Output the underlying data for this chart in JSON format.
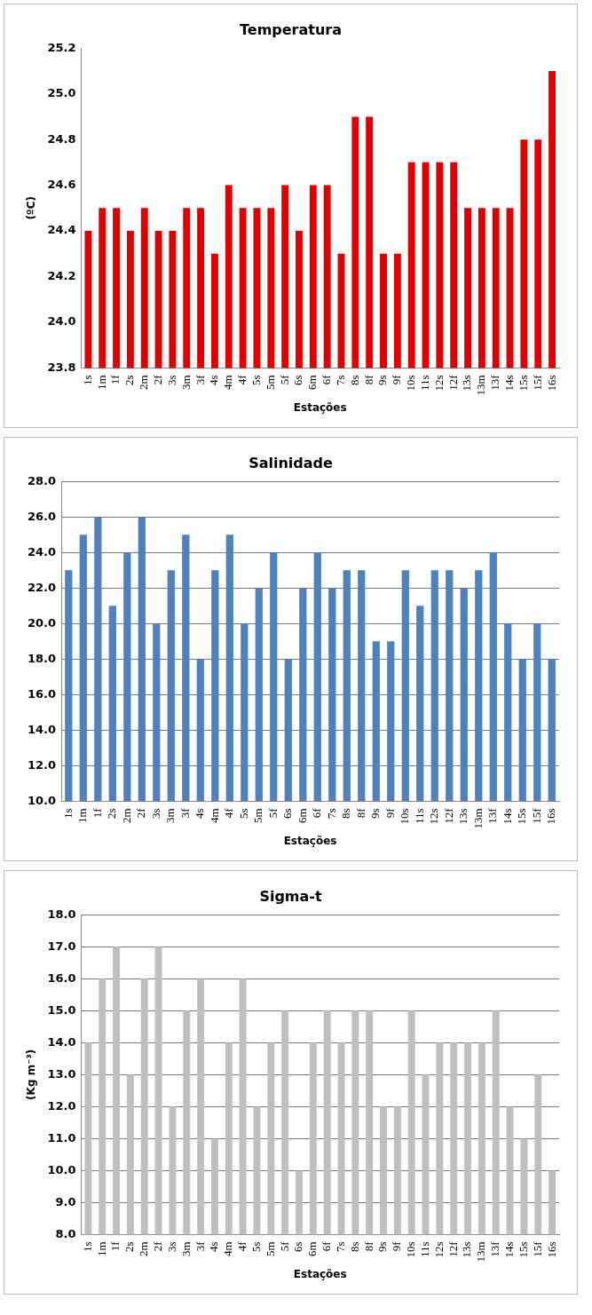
{
  "chart_data": [
    {
      "type": "bar",
      "title": "Temperatura",
      "xlabel": "Estações",
      "ylabel": "(ºC)",
      "categories": [
        "1s",
        "1m",
        "1f",
        "2s",
        "2m",
        "2f",
        "3s",
        "3m",
        "3f",
        "4s",
        "4m",
        "4f",
        "5s",
        "5m",
        "5f",
        "6s",
        "6m",
        "6f",
        "7s",
        "8s",
        "8f",
        "9s",
        "9f",
        "10s",
        "11s",
        "12s",
        "12f",
        "13s",
        "13m",
        "13f",
        "14s",
        "15s",
        "15f",
        "16s"
      ],
      "values": [
        24.4,
        24.5,
        24.5,
        24.4,
        24.5,
        24.4,
        24.4,
        24.5,
        24.5,
        24.3,
        24.6,
        24.5,
        24.5,
        24.5,
        24.6,
        24.4,
        24.6,
        24.6,
        24.3,
        24.9,
        24.9,
        24.3,
        24.3,
        24.7,
        24.7,
        24.7,
        24.7,
        24.5,
        24.5,
        24.5,
        24.5,
        24.8,
        24.8,
        25.1
      ],
      "color": "#e00000",
      "ylim": [
        23.8,
        25.2
      ],
      "yticks": [
        {
          "value": 23.8,
          "label": "23.8"
        },
        {
          "value": 24,
          "label": "24.0"
        },
        {
          "value": 24.2,
          "label": "24.2"
        },
        {
          "value": 24.4,
          "label": "24.4"
        },
        {
          "value": 24.6,
          "label": "24.6"
        },
        {
          "value": 24.8,
          "label": "24.8"
        },
        {
          "value": 25,
          "label": "25.0"
        },
        {
          "value": 25.2,
          "label": "25.2"
        }
      ],
      "grid": false,
      "legend": false
    },
    {
      "type": "bar",
      "title": "Salinidade",
      "xlabel": "Estações",
      "categories": [
        "1s",
        "1m",
        "1f",
        "2s",
        "2m",
        "2f",
        "3s",
        "3m",
        "3f",
        "4s",
        "4m",
        "4f",
        "5s",
        "5m",
        "5f",
        "6s",
        "6m",
        "6f",
        "7s",
        "8s",
        "8f",
        "9s",
        "9f",
        "10s",
        "11s",
        "12s",
        "12f",
        "13s",
        "13m",
        "13f",
        "14s",
        "15s",
        "15f",
        "16s"
      ],
      "values": [
        23,
        25,
        26,
        21,
        24,
        26,
        20,
        23,
        25,
        18,
        23,
        25,
        20,
        22,
        24,
        18,
        22,
        24,
        22,
        23,
        23,
        19,
        19,
        23,
        21,
        23,
        23,
        22,
        23,
        24,
        20,
        18,
        20,
        18
      ],
      "color": "#4f81bd",
      "ylim": [
        10,
        28
      ],
      "yticks": [
        {
          "value": 10,
          "label": "10.0"
        },
        {
          "value": 12,
          "label": "12.0"
        },
        {
          "value": 14,
          "label": "14.0"
        },
        {
          "value": 16,
          "label": "16.0"
        },
        {
          "value": 18,
          "label": "18.0"
        },
        {
          "value": 20,
          "label": "20.0"
        },
        {
          "value": 22,
          "label": "22.0"
        },
        {
          "value": 24,
          "label": "24.0"
        },
        {
          "value": 26,
          "label": "26.0"
        },
        {
          "value": 28,
          "label": "28.0"
        }
      ],
      "grid": "y",
      "legend": false
    },
    {
      "type": "bar",
      "title": "Sigma-t",
      "xlabel": "Estações",
      "ylabel": "(Kg m⁻³)",
      "categories": [
        "1s",
        "1m",
        "1f",
        "2s",
        "2m",
        "2f",
        "3s",
        "3m",
        "3f",
        "4s",
        "4m",
        "4f",
        "5s",
        "5m",
        "5f",
        "6s",
        "6m",
        "6f",
        "7s",
        "8s",
        "8f",
        "9s",
        "9f",
        "10s",
        "11s",
        "12s",
        "12f",
        "13s",
        "13m",
        "13f",
        "14s",
        "15s",
        "15f",
        "16s"
      ],
      "values": [
        14,
        16,
        17,
        13,
        16,
        17,
        12,
        15,
        16,
        11,
        14,
        16,
        12,
        14,
        15,
        10,
        14,
        15,
        14,
        15,
        15,
        12,
        12,
        15,
        13,
        14,
        14,
        14,
        14,
        15,
        12,
        11,
        13,
        10
      ],
      "color": "#bfbfbf",
      "ylim": [
        8,
        18
      ],
      "yticks": [
        {
          "value": 8,
          "label": "8.0"
        },
        {
          "value": 9,
          "label": "9.0"
        },
        {
          "value": 10,
          "label": "10.0"
        },
        {
          "value": 11,
          "label": "11.0"
        },
        {
          "value": 12,
          "label": "12.0"
        },
        {
          "value": 13,
          "label": "13.0"
        },
        {
          "value": 14,
          "label": "14.0"
        },
        {
          "value": 15,
          "label": "15.0"
        },
        {
          "value": 16,
          "label": "16.0"
        },
        {
          "value": 17,
          "label": "17.0"
        },
        {
          "value": 18,
          "label": "18.0"
        }
      ],
      "grid": "y",
      "legend": false
    }
  ]
}
